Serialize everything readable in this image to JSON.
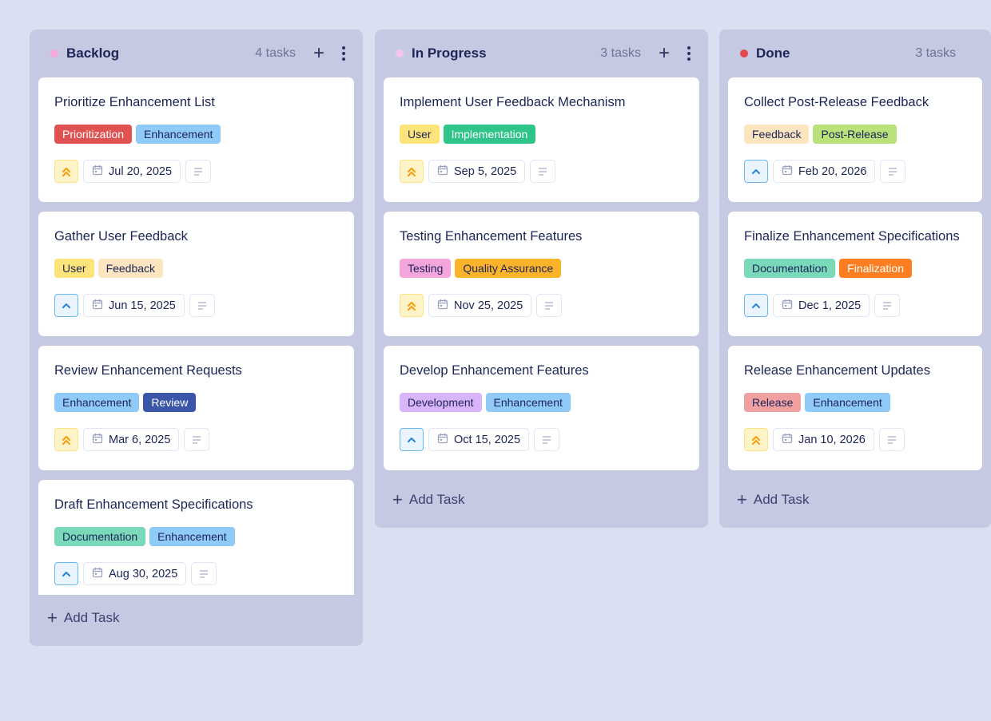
{
  "columns": [
    {
      "title": "Backlog",
      "count": "4 tasks",
      "dot_color": "#f4a9df",
      "show_actions": true,
      "add_label": "Add Task",
      "cards": [
        {
          "title": "Prioritize Enhancement List",
          "tags": [
            {
              "label": "Prioritization",
              "bg": "#e05252",
              "fg": "#ffffff"
            },
            {
              "label": "Enhancement",
              "bg": "#90caf9",
              "fg": "#1d2456"
            }
          ],
          "priority": "high",
          "date": "Jul 20, 2025"
        },
        {
          "title": "Gather User Feedback",
          "tags": [
            {
              "label": "User",
              "bg": "#fde47a",
              "fg": "#1d2456"
            },
            {
              "label": "Feedback",
              "bg": "#fde5bf",
              "fg": "#1d2456"
            }
          ],
          "priority": "medium",
          "date": "Jun 15, 2025"
        },
        {
          "title": "Review Enhancement Requests",
          "tags": [
            {
              "label": "Enhancement",
              "bg": "#90caf9",
              "fg": "#1d2456"
            },
            {
              "label": "Review",
              "bg": "#3a56a8",
              "fg": "#ffffff"
            }
          ],
          "priority": "high",
          "date": "Mar 6, 2025"
        },
        {
          "title": "Draft Enhancement Specifications",
          "tags": [
            {
              "label": "Documentation",
              "bg": "#79d9b9",
              "fg": "#1d2456"
            },
            {
              "label": "Enhancement",
              "bg": "#90caf9",
              "fg": "#1d2456"
            }
          ],
          "priority": "medium",
          "date": "Aug 30, 2025"
        }
      ]
    },
    {
      "title": "In Progress",
      "count": "3 tasks",
      "dot_color": "#f4c6ee",
      "show_actions": true,
      "add_label": "Add Task",
      "cards": [
        {
          "title": "Implement User Feedback Mechanism",
          "tags": [
            {
              "label": "User",
              "bg": "#fde47a",
              "fg": "#1d2456"
            },
            {
              "label": "Implementation",
              "bg": "#2ec48a",
              "fg": "#ffffff"
            }
          ],
          "priority": "high",
          "date": "Sep 5, 2025"
        },
        {
          "title": "Testing Enhancement Features",
          "tags": [
            {
              "label": "Testing",
              "bg": "#f3a6dc",
              "fg": "#1d2456"
            },
            {
              "label": "Quality Assurance",
              "bg": "#fbb32a",
              "fg": "#1d2456"
            }
          ],
          "priority": "high",
          "date": "Nov 25, 2025"
        },
        {
          "title": "Develop Enhancement Features",
          "tags": [
            {
              "label": "Development",
              "bg": "#d8b4f8",
              "fg": "#1d2456"
            },
            {
              "label": "Enhancement",
              "bg": "#90caf9",
              "fg": "#1d2456"
            }
          ],
          "priority": "medium",
          "date": "Oct 15, 2025"
        }
      ]
    },
    {
      "title": "Done",
      "count": "3 tasks",
      "dot_color": "#e5484d",
      "show_actions": false,
      "add_label": "Add Task",
      "cards": [
        {
          "title": "Collect Post-Release Feedback",
          "tags": [
            {
              "label": "Feedback",
              "bg": "#fde5bf",
              "fg": "#1d2456"
            },
            {
              "label": "Post-Release",
              "bg": "#b9e27a",
              "fg": "#1d2456"
            }
          ],
          "priority": "medium",
          "date": "Feb 20, 2026"
        },
        {
          "title": "Finalize Enhancement Specifications",
          "tags": [
            {
              "label": "Documentation",
              "bg": "#79d9b9",
              "fg": "#1d2456"
            },
            {
              "label": "Finalization",
              "bg": "#fd7e22",
              "fg": "#ffffff"
            }
          ],
          "priority": "medium",
          "date": "Dec 1, 2025"
        },
        {
          "title": "Release Enhancement Updates",
          "tags": [
            {
              "label": "Release",
              "bg": "#f0a0a0",
              "fg": "#1d2456"
            },
            {
              "label": "Enhancement",
              "bg": "#90caf9",
              "fg": "#1d2456"
            }
          ],
          "priority": "high",
          "date": "Jan 10, 2026"
        }
      ]
    }
  ]
}
